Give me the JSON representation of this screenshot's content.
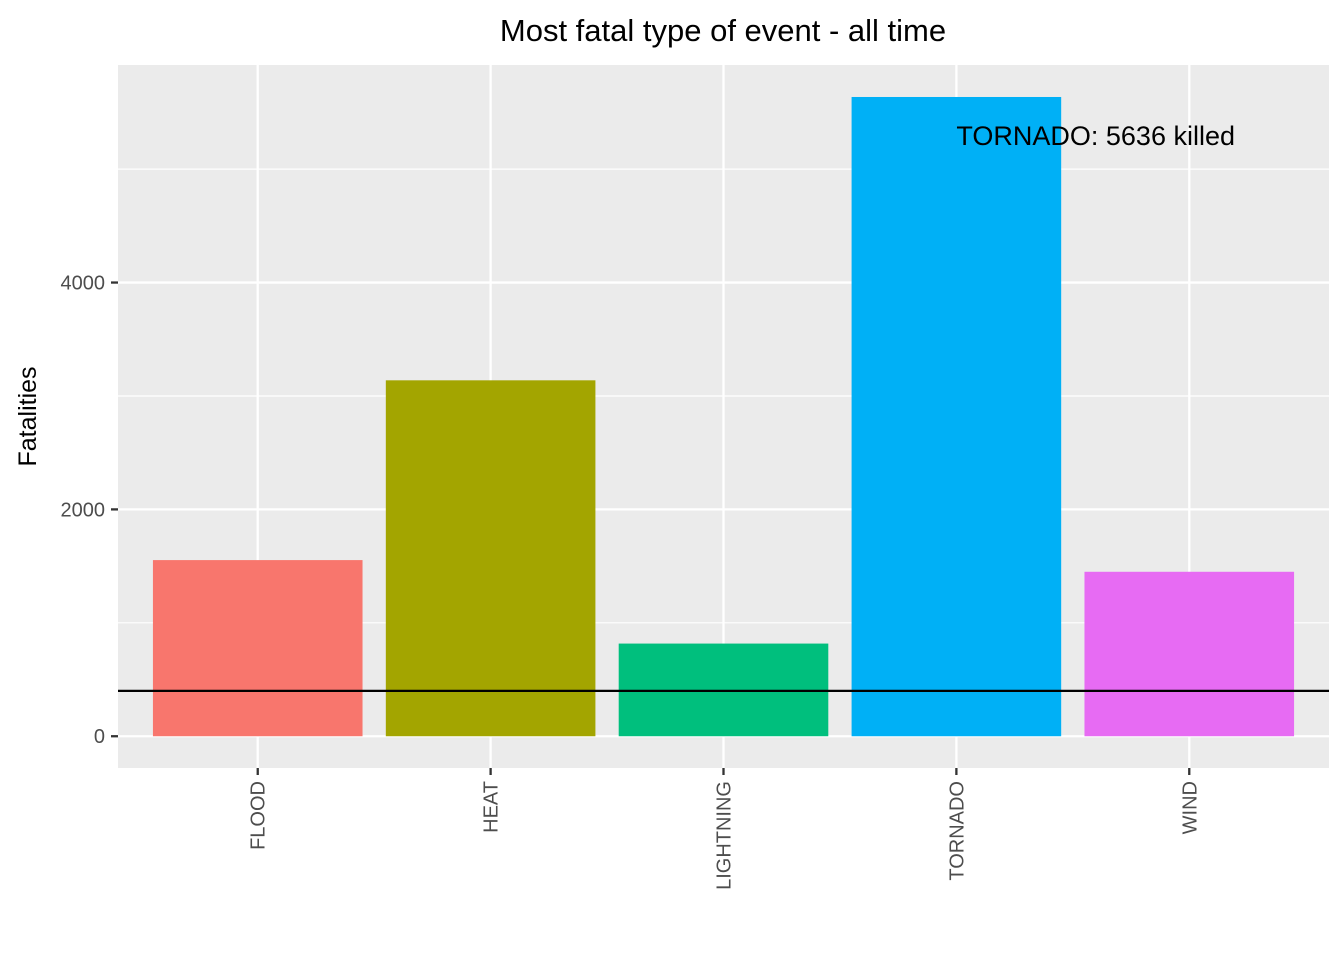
{
  "chart_data": {
    "type": "bar",
    "title": "Most fatal type of event - all time",
    "xlabel": "",
    "ylabel": "Fatalities",
    "categories": [
      "FLOOD",
      "HEAT",
      "LIGHTNING",
      "TORNADO",
      "WIND"
    ],
    "values": [
      1553,
      3138,
      817,
      5636,
      1450
    ],
    "colors": [
      "#F8766D",
      "#A3A500",
      "#00BF7D",
      "#00B0F6",
      "#E76BF3"
    ],
    "ylim": [
      -280,
      5918
    ],
    "yticks": [
      0,
      2000,
      4000
    ],
    "ytick_labels": [
      "0",
      "2000",
      "4000"
    ],
    "hline": {
      "y": 400,
      "color": "#000000"
    },
    "annotation": {
      "text": "TORNADO: 5636 killed",
      "x": "TORNADO",
      "y": 5300
    },
    "panel_background": "#EBEBEB",
    "grid": true,
    "legend": "none"
  }
}
